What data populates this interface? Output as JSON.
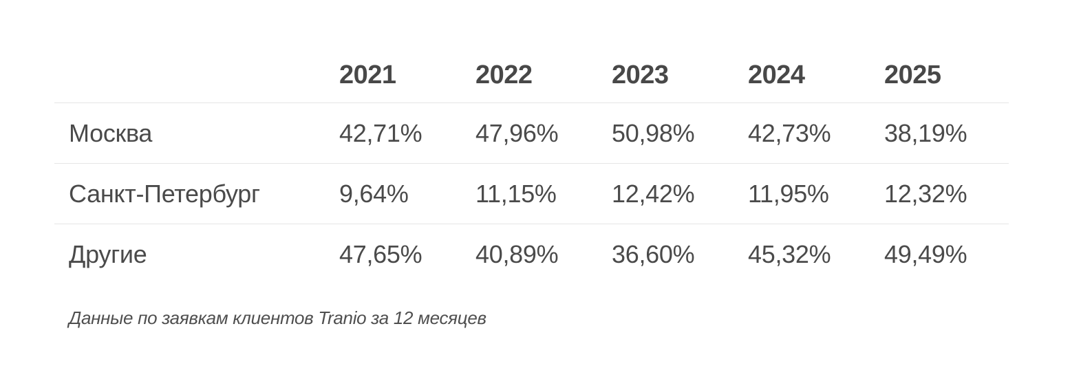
{
  "table": {
    "header": {
      "row_label": "",
      "columns": [
        "2021",
        "2022",
        "2023",
        "2024",
        "2025"
      ]
    },
    "rows": [
      {
        "label": "Москва",
        "values": [
          "42,71%",
          "47,96%",
          "50,98%",
          "42,73%",
          "38,19%"
        ]
      },
      {
        "label": "Санкт-Петербург",
        "values": [
          "9,64%",
          "11,15%",
          "12,42%",
          "11,95%",
          "12,32%"
        ]
      },
      {
        "label": "Другие",
        "values": [
          "47,65%",
          "40,89%",
          "36,60%",
          "45,32%",
          "49,49%"
        ]
      }
    ],
    "footnote": "Данные по заявкам клиентов Tranio за 12 месяцев"
  },
  "chart_data": {
    "type": "table",
    "title": "",
    "columns": [
      "2021",
      "2022",
      "2023",
      "2024",
      "2025"
    ],
    "rows": [
      {
        "label": "Москва",
        "values": [
          42.71,
          47.96,
          50.98,
          42.73,
          38.19
        ]
      },
      {
        "label": "Санкт-Петербург",
        "values": [
          9.64,
          11.15,
          12.42,
          11.95,
          12.32
        ]
      },
      {
        "label": "Другие",
        "values": [
          47.65,
          40.89,
          36.6,
          45.32,
          49.49
        ]
      }
    ],
    "units": "%",
    "footnote": "Данные по заявкам клиентов Tranio за 12 месяцев"
  },
  "colors": {
    "text": "#4a4a4a",
    "header_text": "#484848",
    "divider": "#e5e5e5",
    "background": "#ffffff"
  }
}
